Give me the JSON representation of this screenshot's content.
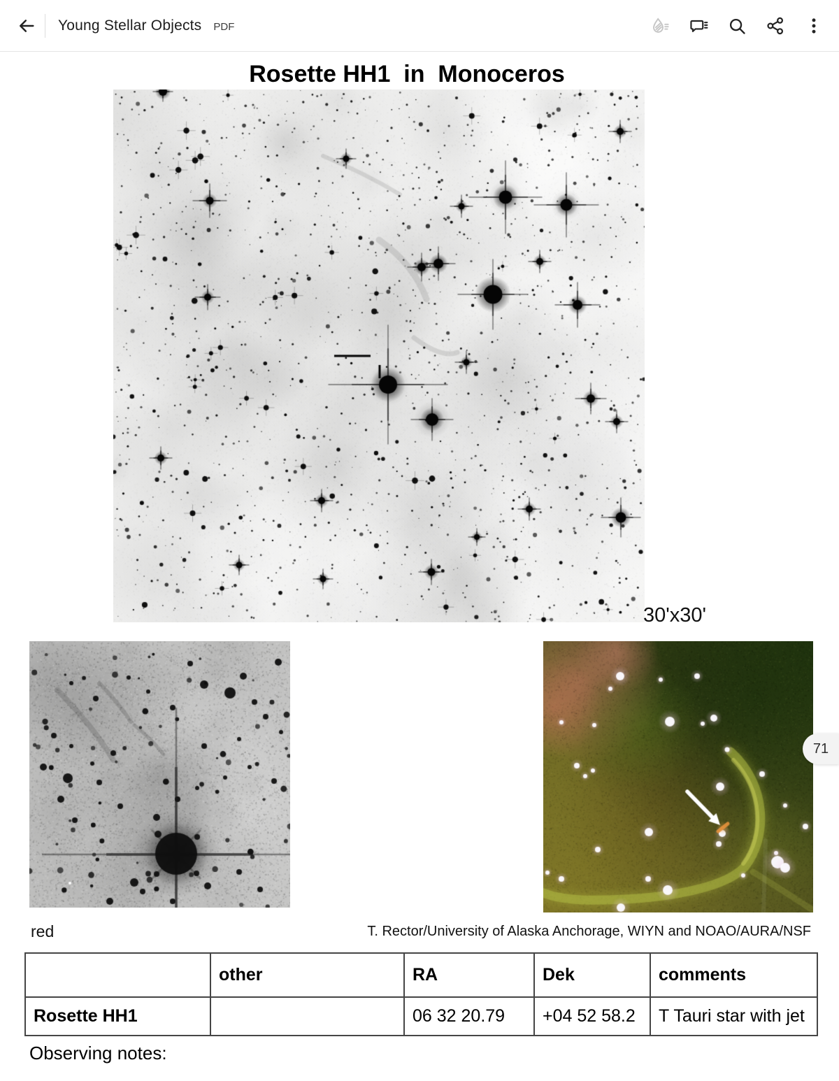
{
  "app_bar": {
    "title": "Young Stellar Objects",
    "doc_type": "PDF",
    "icons": [
      "liquid-mode-icon",
      "comment-icon",
      "search-icon",
      "share-icon",
      "overflow-menu-icon"
    ]
  },
  "document": {
    "page_badge": "71",
    "title": "Rosette HH1  in  Monoceros",
    "main_image_caption": "30'x30'",
    "left_image_caption": "red",
    "credit": "T. Rector/University of Alaska Anchorage, WIYN and NOAO/AURA/NSF",
    "table": {
      "headers": [
        "",
        "other",
        "RA",
        "Dek",
        "comments"
      ],
      "rows": [
        [
          "Rosette HH1",
          "",
          "06 32 20.79",
          "+04 52 58.2",
          "T Tauri star with jet"
        ]
      ]
    },
    "footer_label": "Observing notes:"
  }
}
